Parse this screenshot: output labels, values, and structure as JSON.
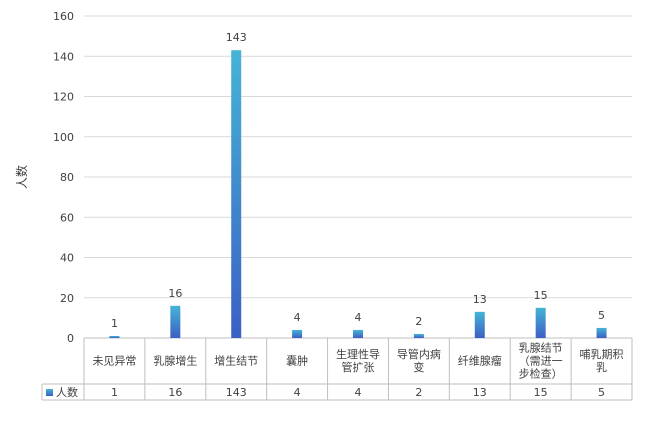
{
  "chart_data": {
    "type": "bar",
    "title": "",
    "xlabel": "",
    "ylabel": "人数",
    "ylim": [
      0,
      160
    ],
    "yticks": [
      0,
      20,
      40,
      60,
      80,
      100,
      120,
      140,
      160
    ],
    "grid": true,
    "legend_position": "in data table, left",
    "categories": [
      [
        "未见异常"
      ],
      [
        "乳腺增生"
      ],
      [
        "增生结节"
      ],
      [
        "囊肿"
      ],
      [
        "生理性导",
        "管扩张"
      ],
      [
        "导管内病",
        "变"
      ],
      [
        "纤维腺瘤"
      ],
      [
        "乳腺结节",
        "（需进一",
        "步检查）"
      ],
      [
        "哺乳期积",
        "乳"
      ]
    ],
    "series": [
      {
        "name": "人数",
        "values": [
          1,
          16,
          143,
          4,
          4,
          2,
          13,
          15,
          5
        ]
      }
    ],
    "data_table": true,
    "colors": {
      "bar_top": "#45b4d6",
      "bar_bottom": "#3c5fc4",
      "grid": "#d9d9d9",
      "axis": "#bfbfbf",
      "text": "#404040"
    }
  }
}
